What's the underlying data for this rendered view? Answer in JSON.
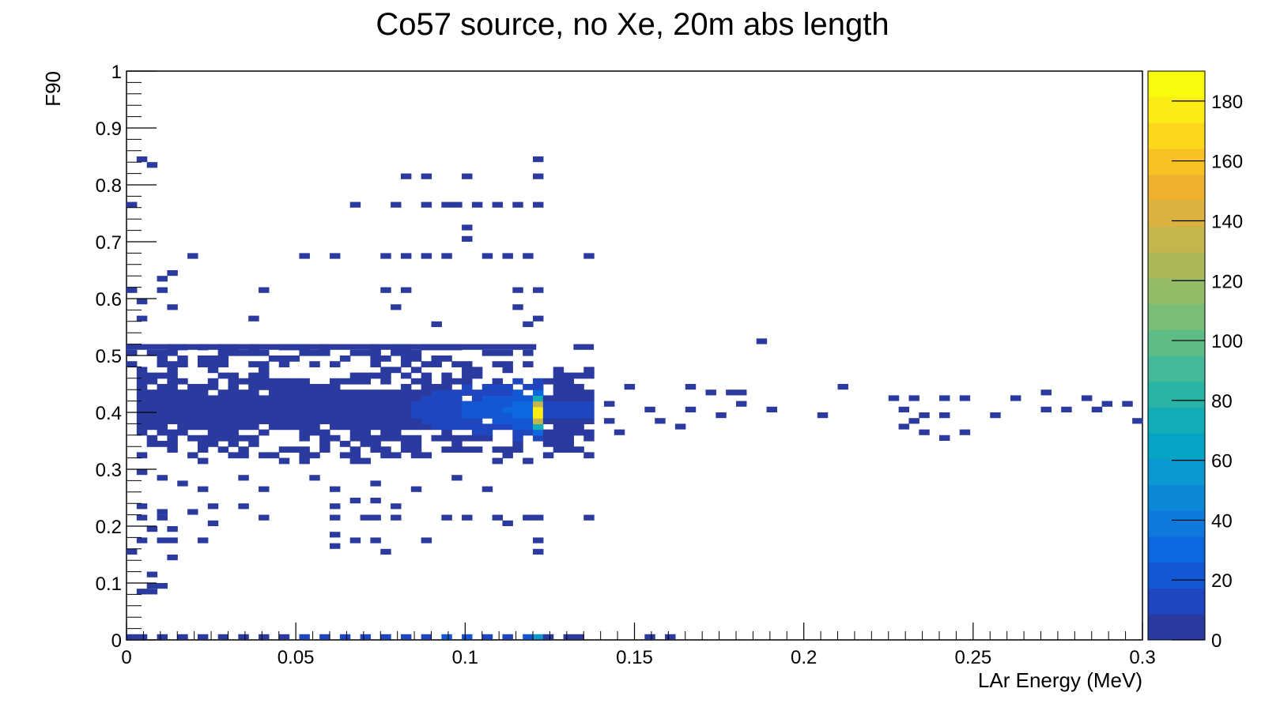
{
  "chart_data": {
    "type": "heatmap",
    "title": "Co57 source, no Xe, 20m abs length",
    "xlabel": "LAr Energy (MeV)",
    "ylabel": "F90",
    "xlim": [
      0,
      0.3
    ],
    "ylim": [
      0,
      1
    ],
    "x_ticks": [
      "0",
      "0.05",
      "0.1",
      "0.15",
      "0.2",
      "0.25",
      "0.3"
    ],
    "y_ticks": [
      "0",
      "0.1",
      "0.2",
      "0.3",
      "0.4",
      "0.5",
      "0.6",
      "0.7",
      "0.8",
      "0.9",
      "1"
    ],
    "colorbar": {
      "range": [
        0,
        190
      ],
      "ticks": [
        "0",
        "20",
        "40",
        "60",
        "80",
        "100",
        "120",
        "140",
        "160",
        "180"
      ],
      "palette": [
        "#2a3a9e",
        "#1f46bf",
        "#1357d4",
        "#0d67de",
        "#0e78dc",
        "#0d88d6",
        "#0b97cf",
        "#06a4c4",
        "#14acb6",
        "#2ab4a6",
        "#44b997",
        "#5fbc86",
        "#79bd77",
        "#94bc66",
        "#adb958",
        "#c4b54c",
        "#dbb13f",
        "#eeb12f",
        "#f8c224",
        "#fcd81c",
        "#fbec16",
        "#f9fb0e"
      ]
    },
    "bins": {
      "x_width": 0.003,
      "y_width": 0.01
    },
    "dense_region": {
      "x_range": [
        0.003,
        0.138
      ],
      "y_range": [
        0.31,
        0.48
      ],
      "peak_x": 0.121,
      "peak_y": 0.4,
      "peak_count": 175
    },
    "cells": [
      [
        0.0,
        0.0,
        3
      ],
      [
        0.003,
        0.0,
        3
      ],
      [
        0.009,
        0.0,
        5
      ],
      [
        0.015,
        0.0,
        6
      ],
      [
        0.021,
        0.0,
        6
      ],
      [
        0.027,
        0.0,
        7
      ],
      [
        0.033,
        0.0,
        7
      ],
      [
        0.039,
        0.0,
        8
      ],
      [
        0.045,
        0.0,
        8
      ],
      [
        0.051,
        0.0,
        9
      ],
      [
        0.057,
        0.0,
        10
      ],
      [
        0.063,
        0.0,
        12
      ],
      [
        0.069,
        0.0,
        13
      ],
      [
        0.075,
        0.0,
        14
      ],
      [
        0.081,
        0.0,
        15
      ],
      [
        0.087,
        0.0,
        16
      ],
      [
        0.093,
        0.0,
        18
      ],
      [
        0.099,
        0.0,
        19
      ],
      [
        0.105,
        0.0,
        17
      ],
      [
        0.111,
        0.0,
        15
      ],
      [
        0.117,
        0.0,
        20
      ],
      [
        0.12,
        0.0,
        55
      ],
      [
        0.123,
        0.0,
        6
      ],
      [
        0.129,
        0.0,
        5
      ],
      [
        0.132,
        0.0,
        4
      ],
      [
        0.153,
        0.0,
        2
      ],
      [
        0.159,
        0.0,
        2
      ],
      [
        0.003,
        0.84,
        1
      ],
      [
        0.006,
        0.83,
        1
      ],
      [
        0.12,
        0.84,
        1
      ],
      [
        0.081,
        0.81,
        1
      ],
      [
        0.087,
        0.81,
        1
      ],
      [
        0.099,
        0.81,
        1
      ],
      [
        0.12,
        0.81,
        1
      ],
      [
        0.0,
        0.76,
        1
      ],
      [
        0.066,
        0.76,
        1
      ],
      [
        0.078,
        0.76,
        1
      ],
      [
        0.087,
        0.76,
        1
      ],
      [
        0.093,
        0.76,
        1
      ],
      [
        0.096,
        0.76,
        1
      ],
      [
        0.102,
        0.76,
        1
      ],
      [
        0.108,
        0.76,
        1
      ],
      [
        0.114,
        0.76,
        1
      ],
      [
        0.12,
        0.76,
        1
      ],
      [
        0.099,
        0.72,
        1
      ],
      [
        0.099,
        0.7,
        1
      ],
      [
        0.018,
        0.67,
        1
      ],
      [
        0.051,
        0.67,
        1
      ],
      [
        0.06,
        0.67,
        1
      ],
      [
        0.075,
        0.67,
        1
      ],
      [
        0.081,
        0.67,
        1
      ],
      [
        0.087,
        0.67,
        1
      ],
      [
        0.093,
        0.67,
        1
      ],
      [
        0.105,
        0.67,
        1
      ],
      [
        0.111,
        0.67,
        1
      ],
      [
        0.117,
        0.67,
        1
      ],
      [
        0.135,
        0.67,
        1
      ],
      [
        0.012,
        0.64,
        1
      ],
      [
        0.009,
        0.63,
        1
      ],
      [
        0.0,
        0.61,
        1
      ],
      [
        0.009,
        0.61,
        1
      ],
      [
        0.039,
        0.61,
        1
      ],
      [
        0.075,
        0.61,
        1
      ],
      [
        0.081,
        0.61,
        1
      ],
      [
        0.114,
        0.61,
        1
      ],
      [
        0.12,
        0.61,
        1
      ],
      [
        0.003,
        0.59,
        1
      ],
      [
        0.012,
        0.58,
        1
      ],
      [
        0.078,
        0.58,
        1
      ],
      [
        0.114,
        0.58,
        1
      ],
      [
        0.003,
        0.56,
        1
      ],
      [
        0.036,
        0.56,
        1
      ],
      [
        0.09,
        0.55,
        1
      ],
      [
        0.117,
        0.55,
        1
      ],
      [
        0.12,
        0.56,
        1
      ],
      [
        0.186,
        0.52,
        1
      ],
      [
        0.147,
        0.44,
        1
      ],
      [
        0.165,
        0.44,
        1
      ],
      [
        0.171,
        0.43,
        1
      ],
      [
        0.177,
        0.43,
        1
      ],
      [
        0.18,
        0.43,
        1
      ],
      [
        0.21,
        0.44,
        1
      ],
      [
        0.225,
        0.42,
        1
      ],
      [
        0.231,
        0.42,
        1
      ],
      [
        0.24,
        0.42,
        1
      ],
      [
        0.246,
        0.42,
        1
      ],
      [
        0.261,
        0.42,
        1
      ],
      [
        0.27,
        0.43,
        1
      ],
      [
        0.282,
        0.42,
        1
      ],
      [
        0.288,
        0.41,
        1
      ],
      [
        0.294,
        0.41,
        1
      ],
      [
        0.141,
        0.41,
        1
      ],
      [
        0.153,
        0.4,
        1
      ],
      [
        0.165,
        0.4,
        1
      ],
      [
        0.174,
        0.39,
        1
      ],
      [
        0.18,
        0.41,
        1
      ],
      [
        0.189,
        0.4,
        1
      ],
      [
        0.204,
        0.39,
        1
      ],
      [
        0.228,
        0.4,
        1
      ],
      [
        0.231,
        0.38,
        1
      ],
      [
        0.234,
        0.39,
        1
      ],
      [
        0.24,
        0.39,
        1
      ],
      [
        0.255,
        0.39,
        1
      ],
      [
        0.27,
        0.4,
        1
      ],
      [
        0.276,
        0.4,
        1
      ],
      [
        0.285,
        0.4,
        1
      ],
      [
        0.297,
        0.38,
        1
      ],
      [
        0.141,
        0.38,
        1
      ],
      [
        0.144,
        0.36,
        1
      ],
      [
        0.156,
        0.38,
        1
      ],
      [
        0.162,
        0.37,
        1
      ],
      [
        0.228,
        0.37,
        1
      ],
      [
        0.234,
        0.36,
        1
      ],
      [
        0.24,
        0.35,
        1
      ],
      [
        0.246,
        0.36,
        1
      ],
      [
        0.003,
        0.29,
        1
      ],
      [
        0.009,
        0.28,
        1
      ],
      [
        0.015,
        0.27,
        1
      ],
      [
        0.021,
        0.26,
        1
      ],
      [
        0.033,
        0.28,
        1
      ],
      [
        0.039,
        0.26,
        1
      ],
      [
        0.054,
        0.28,
        1
      ],
      [
        0.06,
        0.26,
        1
      ],
      [
        0.072,
        0.27,
        1
      ],
      [
        0.084,
        0.26,
        1
      ],
      [
        0.096,
        0.28,
        1
      ],
      [
        0.105,
        0.26,
        1
      ],
      [
        0.003,
        0.23,
        1
      ],
      [
        0.009,
        0.22,
        1
      ],
      [
        0.018,
        0.22,
        1
      ],
      [
        0.024,
        0.23,
        1
      ],
      [
        0.033,
        0.23,
        1
      ],
      [
        0.06,
        0.23,
        1
      ],
      [
        0.066,
        0.24,
        1
      ],
      [
        0.072,
        0.24,
        1
      ],
      [
        0.078,
        0.23,
        1
      ],
      [
        0.003,
        0.21,
        1
      ],
      [
        0.009,
        0.21,
        1
      ],
      [
        0.024,
        0.2,
        1
      ],
      [
        0.039,
        0.21,
        1
      ],
      [
        0.06,
        0.21,
        1
      ],
      [
        0.069,
        0.21,
        1
      ],
      [
        0.072,
        0.21,
        1
      ],
      [
        0.078,
        0.21,
        1
      ],
      [
        0.093,
        0.21,
        1
      ],
      [
        0.099,
        0.21,
        1
      ],
      [
        0.108,
        0.21,
        1
      ],
      [
        0.111,
        0.2,
        1
      ],
      [
        0.117,
        0.21,
        1
      ],
      [
        0.12,
        0.21,
        1
      ],
      [
        0.135,
        0.21,
        1
      ],
      [
        0.006,
        0.19,
        1
      ],
      [
        0.012,
        0.19,
        1
      ],
      [
        0.06,
        0.18,
        1
      ],
      [
        0.003,
        0.17,
        1
      ],
      [
        0.009,
        0.17,
        1
      ],
      [
        0.012,
        0.17,
        1
      ],
      [
        0.021,
        0.17,
        1
      ],
      [
        0.066,
        0.17,
        1
      ],
      [
        0.072,
        0.17,
        1
      ],
      [
        0.087,
        0.17,
        1
      ],
      [
        0.12,
        0.17,
        1
      ],
      [
        0.06,
        0.16,
        1
      ],
      [
        0.0,
        0.15,
        1
      ],
      [
        0.075,
        0.15,
        1
      ],
      [
        0.12,
        0.15,
        1
      ],
      [
        0.012,
        0.14,
        1
      ],
      [
        0.006,
        0.11,
        1
      ],
      [
        0.006,
        0.09,
        1
      ],
      [
        0.009,
        0.09,
        1
      ],
      [
        0.003,
        0.08,
        1
      ],
      [
        0.006,
        0.08,
        1
      ]
    ],
    "legend": "none",
    "grid": false
  }
}
